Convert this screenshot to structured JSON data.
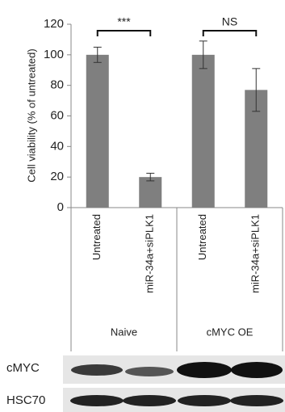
{
  "chart_data": {
    "type": "bar",
    "ylabel": "Cell viability (% of untreated)",
    "categories": [
      "Untreated",
      "miR-34a+siPLK1",
      "Untreated",
      "miR-34a+siPLK1"
    ],
    "groups": [
      "Naive",
      "cMYC OE"
    ],
    "values": [
      100,
      20,
      100,
      77
    ],
    "errors": [
      5,
      2.5,
      9,
      14
    ],
    "color": "#7f7f7f",
    "ylim": [
      0,
      120
    ],
    "yticks": [
      0,
      20,
      40,
      60,
      80,
      100,
      120
    ],
    "annotations": [
      "***",
      "NS"
    ]
  },
  "blot": {
    "rows": [
      "cMYC",
      "HSC70"
    ]
  }
}
